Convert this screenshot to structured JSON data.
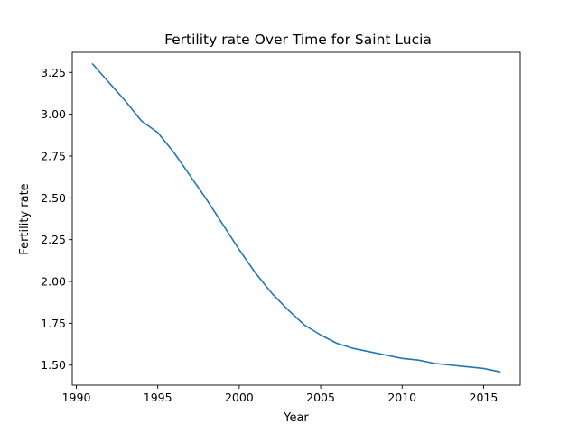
{
  "chart_data": {
    "type": "line",
    "title": "Fertility rate Over Time for Saint Lucia",
    "xlabel": "Year",
    "ylabel": "Fertility rate",
    "x": [
      1991,
      1992,
      1993,
      1994,
      1995,
      1996,
      1997,
      1998,
      1999,
      2000,
      2001,
      2002,
      2003,
      2004,
      2005,
      2006,
      2007,
      2008,
      2009,
      2010,
      2011,
      2012,
      2013,
      2014,
      2015,
      2016
    ],
    "series": [
      {
        "values": [
          3.3,
          3.19,
          3.08,
          2.96,
          2.89,
          2.77,
          2.63,
          2.49,
          2.34,
          2.19,
          2.05,
          1.93,
          1.83,
          1.74,
          1.68,
          1.63,
          1.6,
          1.58,
          1.56,
          1.54,
          1.53,
          1.51,
          1.5,
          1.49,
          1.48,
          1.46
        ],
        "color": "#1f77b4"
      }
    ],
    "xlim": [
      1989.75,
      2017.25
    ],
    "ylim": [
      1.38,
      3.37
    ],
    "xticks": [
      1990,
      1995,
      2000,
      2005,
      2010,
      2015
    ],
    "yticks": [
      1.5,
      1.75,
      2.0,
      2.25,
      2.5,
      2.75,
      3.0,
      3.25
    ],
    "xtick_labels": [
      "1990",
      "1995",
      "2000",
      "2005",
      "2010",
      "2015"
    ],
    "ytick_labels": [
      "1.50",
      "1.75",
      "2.00",
      "2.25",
      "2.50",
      "2.75",
      "3.00",
      "3.25"
    ],
    "grid": false
  }
}
